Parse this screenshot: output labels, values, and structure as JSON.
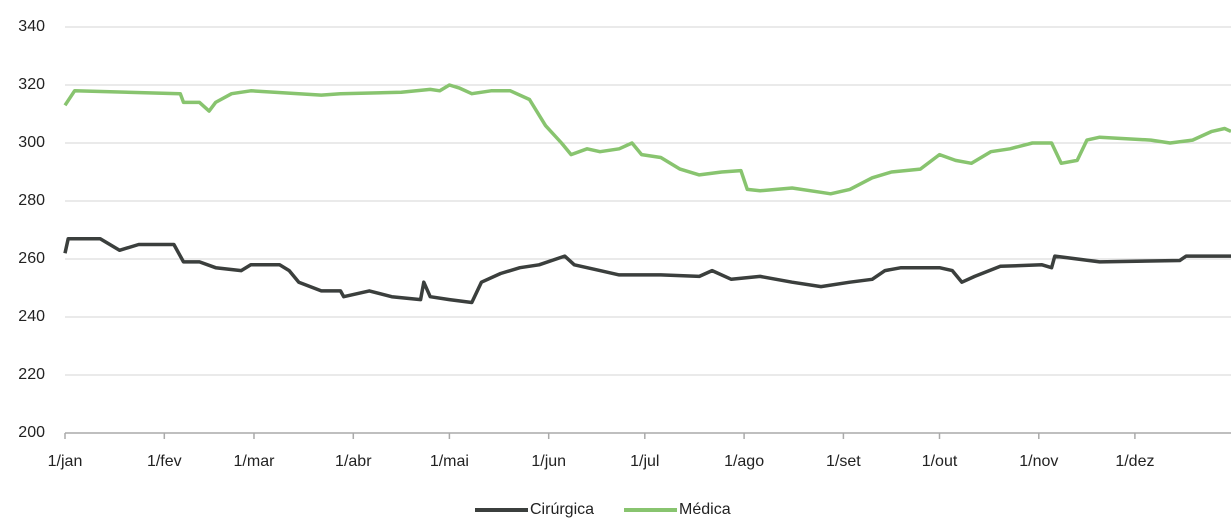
{
  "chart_data": {
    "type": "line",
    "xlim": [
      0,
      364
    ],
    "xticks": [
      {
        "value": 0,
        "label": "1/jan"
      },
      {
        "value": 31,
        "label": "1/fev"
      },
      {
        "value": 59,
        "label": "1/mar"
      },
      {
        "value": 90,
        "label": "1/abr"
      },
      {
        "value": 120,
        "label": "1/mai"
      },
      {
        "value": 151,
        "label": "1/jun"
      },
      {
        "value": 181,
        "label": "1/jul"
      },
      {
        "value": 212,
        "label": "1/ago"
      },
      {
        "value": 243,
        "label": "1/set"
      },
      {
        "value": 273,
        "label": "1/out"
      },
      {
        "value": 304,
        "label": "1/nov"
      },
      {
        "value": 334,
        "label": "1/dez"
      }
    ],
    "ylim": [
      200,
      340
    ],
    "yticks": [
      200,
      220,
      240,
      260,
      280,
      300,
      320,
      340
    ],
    "grid": true,
    "legend": "bottom",
    "series": [
      {
        "name": "Cirúrgica",
        "color": "#3b3f3d",
        "x": [
          0,
          1,
          11,
          17,
          23,
          34,
          37,
          42,
          47,
          55,
          58,
          67,
          70,
          73,
          80,
          86,
          87,
          95,
          102,
          111,
          112,
          114,
          120,
          127,
          130,
          136,
          142,
          148,
          156,
          159,
          167,
          173,
          186,
          198,
          202,
          208,
          217,
          227,
          236,
          245,
          252,
          256,
          261,
          273,
          277,
          280,
          284,
          292,
          305,
          308,
          309,
          323,
          348,
          350,
          364
        ],
        "values": [
          262,
          267,
          267,
          263,
          265,
          265,
          259,
          259,
          257,
          256,
          258,
          258,
          256,
          252,
          249,
          249,
          247,
          249,
          247,
          246,
          252,
          247,
          246,
          245,
          252,
          255,
          257,
          258,
          261,
          258,
          256,
          254.5,
          254.5,
          254,
          256,
          253,
          254,
          252,
          250.5,
          252,
          253,
          256,
          257,
          257,
          256,
          252,
          254,
          257.5,
          258,
          257,
          261,
          259,
          259.5,
          261,
          261
        ]
      },
      {
        "name": "Médica",
        "color": "#88c46f",
        "x": [
          0,
          3,
          36,
          37,
          42,
          45,
          47,
          52,
          58,
          73,
          80,
          86,
          105,
          114,
          117,
          120,
          123,
          127,
          133,
          139,
          145,
          150,
          155,
          158,
          163,
          167,
          173,
          177,
          180,
          186,
          192,
          198,
          205,
          211,
          213,
          217,
          227,
          236,
          239,
          245,
          252,
          258,
          267,
          273,
          278,
          283,
          289,
          295,
          302,
          308,
          311,
          316,
          319,
          323,
          339,
          345,
          352,
          358,
          362,
          364
        ],
        "values": [
          313,
          318,
          317,
          314,
          314,
          311,
          314,
          317,
          318,
          317,
          316.5,
          317,
          317.5,
          318.5,
          318,
          320,
          319,
          317,
          318,
          318,
          315,
          306,
          300,
          296,
          298,
          297,
          298,
          300,
          296,
          295,
          291,
          289,
          290,
          290.5,
          284,
          283.5,
          284.5,
          283,
          282.5,
          284,
          288,
          290,
          291,
          296,
          294,
          293,
          297,
          298,
          300,
          300,
          293,
          294,
          301,
          302,
          301,
          300,
          301,
          304,
          305,
          304
        ]
      }
    ]
  }
}
